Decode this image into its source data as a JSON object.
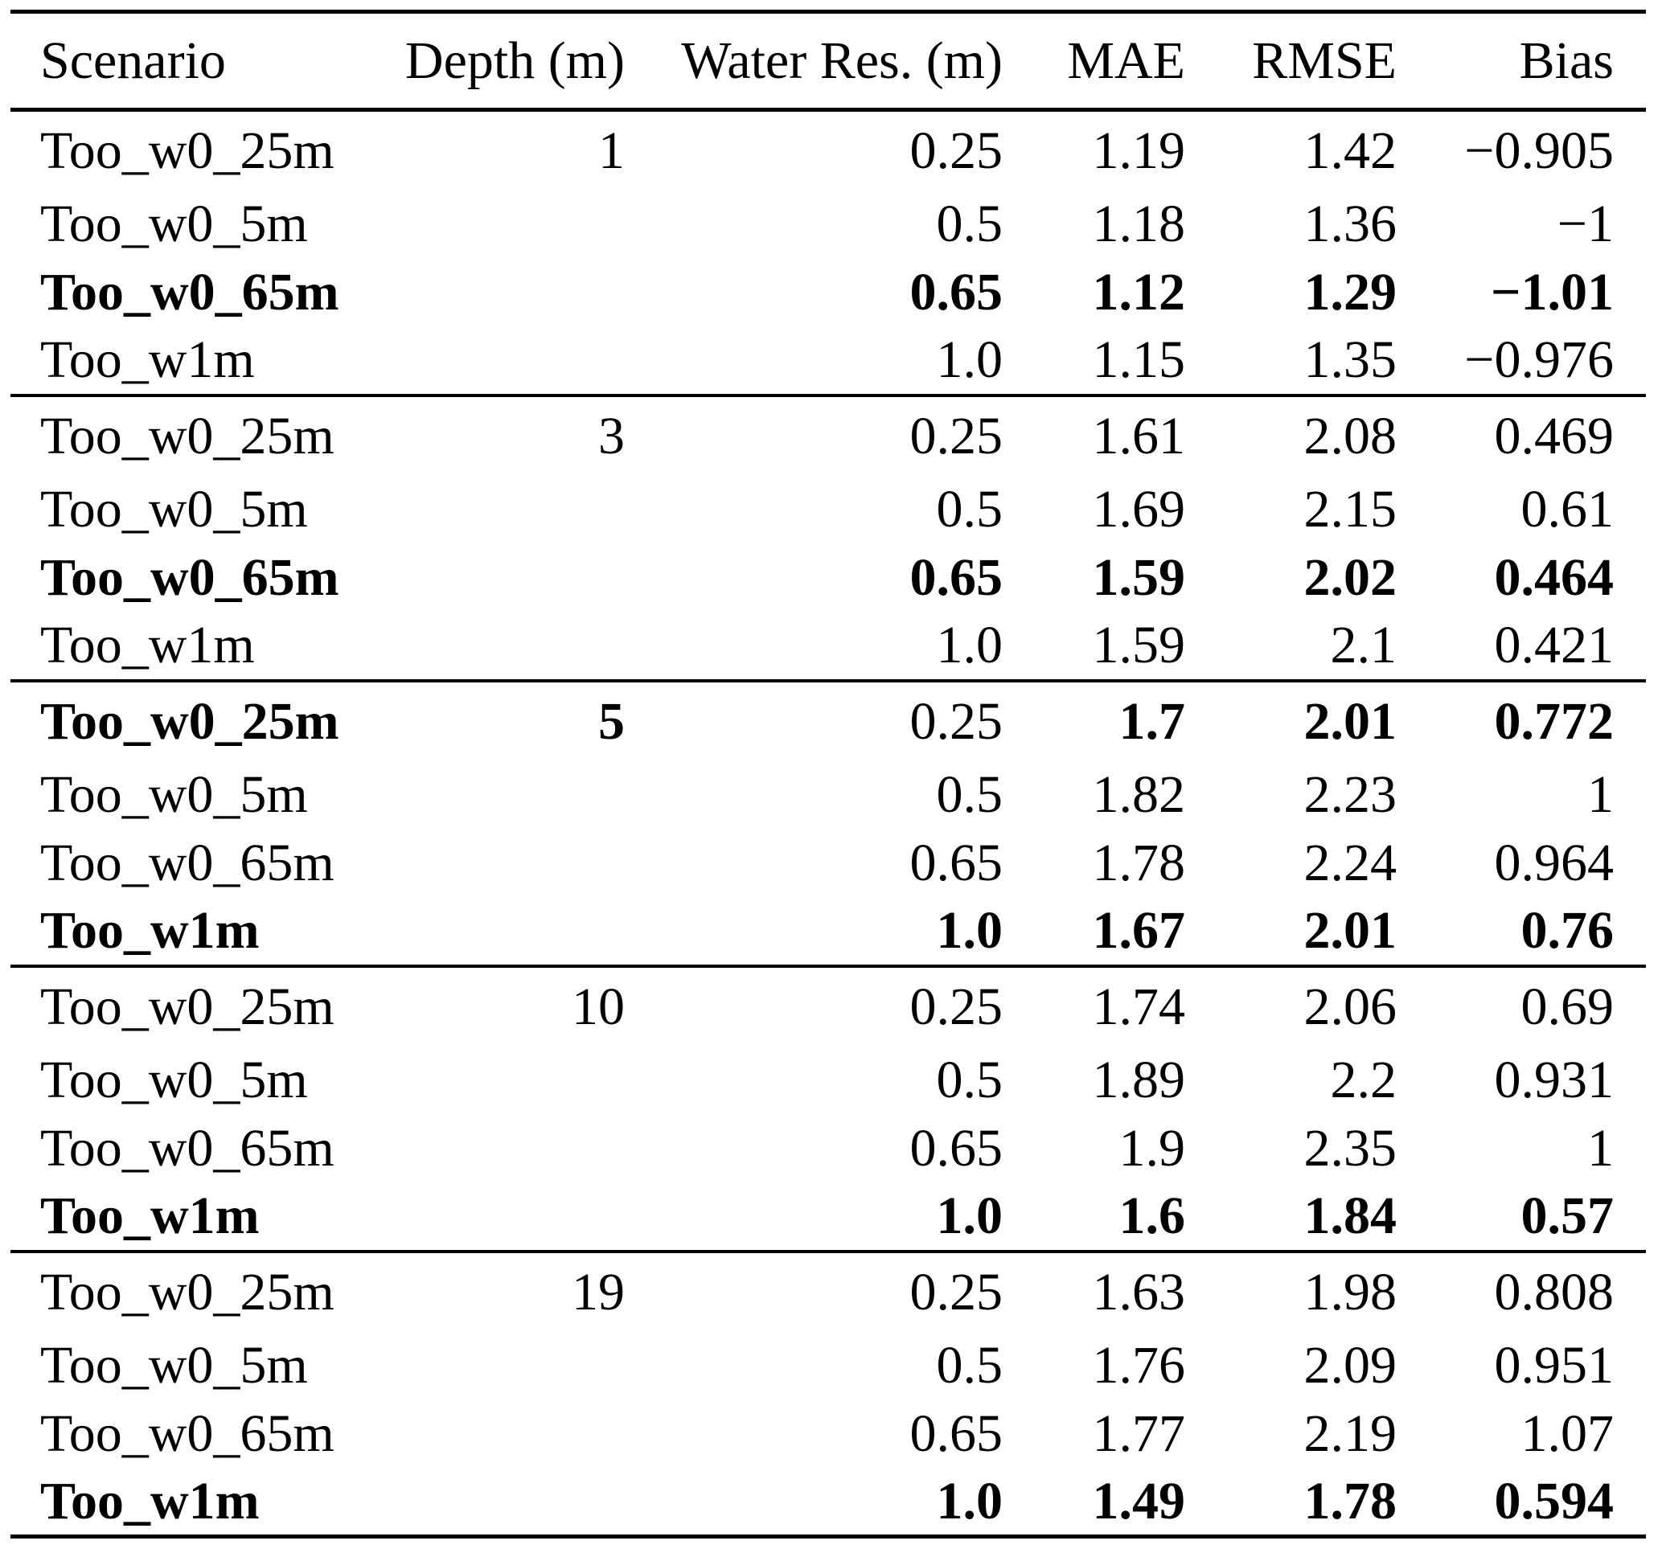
{
  "colors": {
    "background": "#ffffff",
    "text": "#000000",
    "rule": "#000000"
  },
  "table": {
    "columns": [
      "Scenario",
      "Depth (m)",
      "Water Res. (m)",
      "MAE",
      "RMSE",
      "Bias"
    ],
    "groups": [
      {
        "depth": "1",
        "rows": [
          {
            "cells": [
              "Too_w0_25m",
              "1",
              "0.25",
              "1.19",
              "1.42",
              "−0.905"
            ],
            "bold": [
              false,
              false,
              false,
              false,
              false,
              false
            ]
          },
          {
            "cells": [
              "Too_w0_5m",
              "",
              "0.5",
              "1.18",
              "1.36",
              "−1"
            ],
            "bold": [
              false,
              false,
              false,
              false,
              false,
              false
            ]
          },
          {
            "cells": [
              "Too_w0_65m",
              "",
              "0.65",
              "1.12",
              "1.29",
              "−1.01"
            ],
            "bold": [
              true,
              false,
              true,
              true,
              true,
              true
            ]
          },
          {
            "cells": [
              "Too_w1m",
              "",
              "1.0",
              "1.15",
              "1.35",
              "−0.976"
            ],
            "bold": [
              false,
              false,
              false,
              false,
              false,
              false
            ]
          }
        ]
      },
      {
        "depth": "3",
        "rows": [
          {
            "cells": [
              "Too_w0_25m",
              "3",
              "0.25",
              "1.61",
              "2.08",
              "0.469"
            ],
            "bold": [
              false,
              false,
              false,
              false,
              false,
              false
            ]
          },
          {
            "cells": [
              "Too_w0_5m",
              "",
              "0.5",
              "1.69",
              "2.15",
              "0.61"
            ],
            "bold": [
              false,
              false,
              false,
              false,
              false,
              false
            ]
          },
          {
            "cells": [
              "Too_w0_65m",
              "",
              "0.65",
              "1.59",
              "2.02",
              "0.464"
            ],
            "bold": [
              true,
              false,
              true,
              true,
              true,
              true
            ]
          },
          {
            "cells": [
              "Too_w1m",
              "",
              "1.0",
              "1.59",
              "2.1",
              "0.421"
            ],
            "bold": [
              false,
              false,
              false,
              false,
              false,
              false
            ]
          }
        ]
      },
      {
        "depth": "5",
        "rows": [
          {
            "cells": [
              "Too_w0_25m",
              "5",
              "0.25",
              "1.7",
              "2.01",
              "0.772"
            ],
            "bold": [
              true,
              true,
              false,
              true,
              true,
              true
            ]
          },
          {
            "cells": [
              "Too_w0_5m",
              "",
              "0.5",
              "1.82",
              "2.23",
              "1"
            ],
            "bold": [
              false,
              false,
              false,
              false,
              false,
              false
            ]
          },
          {
            "cells": [
              "Too_w0_65m",
              "",
              "0.65",
              "1.78",
              "2.24",
              "0.964"
            ],
            "bold": [
              false,
              false,
              false,
              false,
              false,
              false
            ]
          },
          {
            "cells": [
              "Too_w1m",
              "",
              "1.0",
              "1.67",
              "2.01",
              "0.76"
            ],
            "bold": [
              true,
              false,
              true,
              true,
              true,
              true
            ]
          }
        ]
      },
      {
        "depth": "10",
        "rows": [
          {
            "cells": [
              "Too_w0_25m",
              "10",
              "0.25",
              "1.74",
              "2.06",
              "0.69"
            ],
            "bold": [
              false,
              false,
              false,
              false,
              false,
              false
            ]
          },
          {
            "cells": [
              "Too_w0_5m",
              "",
              "0.5",
              "1.89",
              "2.2",
              "0.931"
            ],
            "bold": [
              false,
              false,
              false,
              false,
              false,
              false
            ]
          },
          {
            "cells": [
              "Too_w0_65m",
              "",
              "0.65",
              "1.9",
              "2.35",
              "1"
            ],
            "bold": [
              false,
              false,
              false,
              false,
              false,
              false
            ]
          },
          {
            "cells": [
              "Too_w1m",
              "",
              "1.0",
              "1.6",
              "1.84",
              "0.57"
            ],
            "bold": [
              true,
              false,
              true,
              true,
              true,
              true
            ]
          }
        ]
      },
      {
        "depth": "19",
        "rows": [
          {
            "cells": [
              "Too_w0_25m",
              "19",
              "0.25",
              "1.63",
              "1.98",
              "0.808"
            ],
            "bold": [
              false,
              false,
              false,
              false,
              false,
              false
            ]
          },
          {
            "cells": [
              "Too_w0_5m",
              "",
              "0.5",
              "1.76",
              "2.09",
              "0.951"
            ],
            "bold": [
              false,
              false,
              false,
              false,
              false,
              false
            ]
          },
          {
            "cells": [
              "Too_w0_65m",
              "",
              "0.65",
              "1.77",
              "2.19",
              "1.07"
            ],
            "bold": [
              false,
              false,
              false,
              false,
              false,
              false
            ]
          },
          {
            "cells": [
              "Too_w1m",
              "",
              "1.0",
              "1.49",
              "1.78",
              "0.594"
            ],
            "bold": [
              true,
              false,
              true,
              true,
              true,
              true
            ]
          }
        ]
      }
    ]
  }
}
